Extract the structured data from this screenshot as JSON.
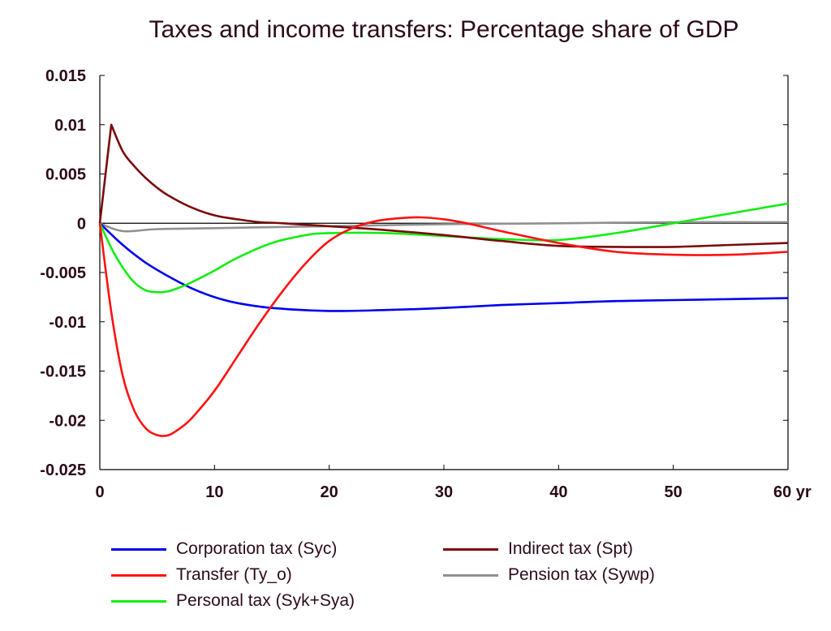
{
  "chart_data": {
    "type": "line",
    "title": "Taxes and income transfers: Percentage share of GDP",
    "xlabel": "",
    "ylabel": "",
    "xlim": [
      0,
      60
    ],
    "ylim": [
      -0.025,
      0.015
    ],
    "x_ticks": [
      "0",
      "10",
      "20",
      "30",
      "40",
      "50",
      "60 yr"
    ],
    "y_ticks": [
      "0.015",
      "0.01",
      "0.005",
      "0",
      "-0.005",
      "-0.01",
      "-0.015",
      "-0.02",
      "-0.025"
    ],
    "grid": false,
    "legend_position": "bottom",
    "series": [
      {
        "name": "Corporation tax (Syc)",
        "color": "#0000ee",
        "x": [
          0,
          2,
          4,
          6,
          8,
          10,
          12,
          15,
          20,
          25,
          30,
          35,
          40,
          45,
          50,
          55,
          60
        ],
        "y": [
          0,
          -0.0022,
          -0.004,
          -0.0054,
          -0.0066,
          -0.0075,
          -0.0081,
          -0.0086,
          -0.0089,
          -0.0088,
          -0.0086,
          -0.0083,
          -0.0081,
          -0.0079,
          -0.0078,
          -0.0077,
          -0.0076
        ]
      },
      {
        "name": "Transfer (Ty_o)",
        "color": "#ff1111",
        "x": [
          0,
          1,
          2,
          3,
          4,
          5,
          6,
          7,
          8,
          10,
          12,
          14,
          16,
          18,
          20,
          22,
          24,
          26,
          28,
          30,
          32,
          35,
          40,
          45,
          50,
          55,
          60
        ],
        "y": [
          0,
          -0.009,
          -0.0155,
          -0.019,
          -0.0208,
          -0.0215,
          -0.0215,
          -0.0208,
          -0.0198,
          -0.017,
          -0.0135,
          -0.01,
          -0.0068,
          -0.004,
          -0.0018,
          -0.0005,
          0.0002,
          0.0005,
          0.0006,
          0.0004,
          0.0,
          -0.0008,
          -0.002,
          -0.0029,
          -0.0032,
          -0.0032,
          -0.0029
        ]
      },
      {
        "name": "Personal tax (Syk+Sya)",
        "color": "#11ee11",
        "x": [
          0,
          1,
          2,
          3,
          4,
          5,
          6,
          7,
          8,
          10,
          12,
          15,
          18,
          20,
          25,
          30,
          35,
          40,
          45,
          50,
          55,
          60
        ],
        "y": [
          0,
          -0.0025,
          -0.0045,
          -0.006,
          -0.0068,
          -0.007,
          -0.0069,
          -0.0065,
          -0.006,
          -0.0048,
          -0.0035,
          -0.002,
          -0.0012,
          -0.001,
          -0.001,
          -0.0013,
          -0.0016,
          -0.0017,
          -0.001,
          0.0,
          0.001,
          0.002
        ]
      },
      {
        "name": "Indirect tax (Spt)",
        "color": "#7a0a0a",
        "x": [
          0,
          1,
          2,
          3,
          4,
          5,
          6,
          8,
          10,
          12,
          14,
          16,
          20,
          25,
          30,
          35,
          40,
          45,
          50,
          55,
          60
        ],
        "y": [
          0,
          0.01,
          0.0073,
          0.0058,
          0.0046,
          0.0036,
          0.0028,
          0.0016,
          0.0008,
          0.0004,
          0.0001,
          0.0,
          -0.0003,
          -0.0007,
          -0.0012,
          -0.0018,
          -0.0023,
          -0.0024,
          -0.0024,
          -0.0022,
          -0.002
        ]
      },
      {
        "name": "Pension tax (Sywp)",
        "color": "#909090",
        "x": [
          0,
          2,
          5,
          10,
          15,
          20,
          30,
          40,
          50,
          60
        ],
        "y": [
          0,
          -0.0008,
          -0.0006,
          -0.0005,
          -0.0004,
          -0.0003,
          -0.0001,
          0.0,
          0.0001,
          0.0001
        ]
      }
    ]
  }
}
